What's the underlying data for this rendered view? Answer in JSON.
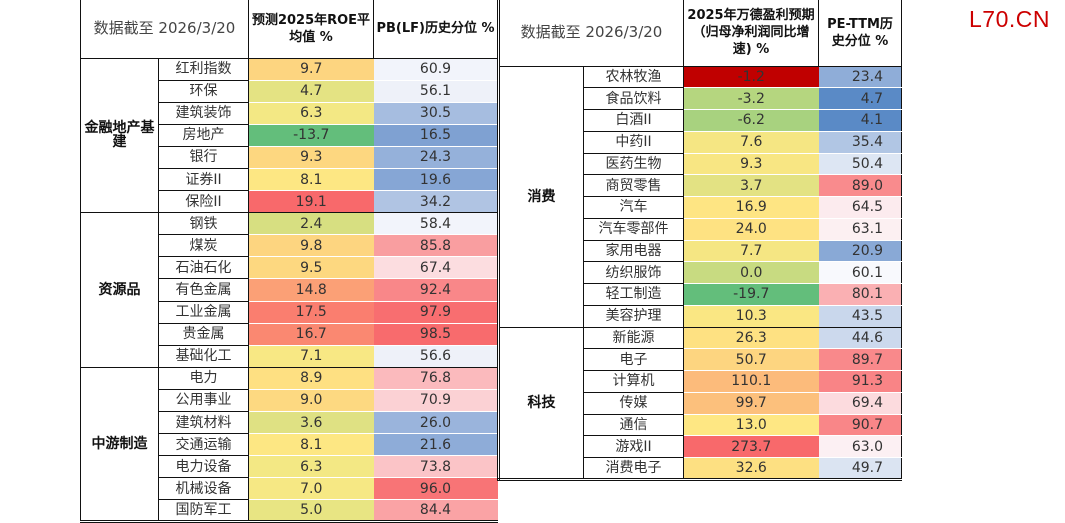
{
  "watermark": "L70.CN",
  "left_table": {
    "header": {
      "date_label": "数据截至 2026/3/20",
      "col1": "预测2025年ROE平均值 %",
      "col2": "PB(LF)历史分位 %"
    },
    "groups": [
      {
        "name": "金融地产基建",
        "rows": [
          {
            "industry": "红利指数",
            "roe": "9.7",
            "pb": "60.9",
            "roe_color": "#fdd580",
            "pb_color": "#f2f4fb"
          },
          {
            "industry": "环保",
            "roe": "4.7",
            "pb": "56.1",
            "roe_color": "#e4e383",
            "pb_color": "#eef1f9"
          },
          {
            "industry": "建筑装饰",
            "roe": "6.3",
            "pb": "30.5",
            "roe_color": "#f3e884",
            "pb_color": "#a6bde0"
          },
          {
            "industry": "房地产",
            "roe": "-13.7",
            "pb": "16.5",
            "roe_color": "#63be7b",
            "pb_color": "#7fa1d2"
          },
          {
            "industry": "银行",
            "roe": "9.3",
            "pb": "24.3",
            "roe_color": "#fdd780",
            "pb_color": "#95b1da"
          },
          {
            "industry": "证券II",
            "roe": "8.1",
            "pb": "19.6",
            "roe_color": "#fde783",
            "pb_color": "#86a6d5"
          },
          {
            "industry": "保险II",
            "roe": "19.1",
            "pb": "34.2",
            "roe_color": "#f8696b",
            "pb_color": "#b0c4e3"
          }
        ]
      },
      {
        "name": "资源品",
        "rows": [
          {
            "industry": "钢铁",
            "roe": "2.4",
            "pb": "58.4",
            "roe_color": "#d7df81",
            "pb_color": "#f2f4fb"
          },
          {
            "industry": "煤炭",
            "roe": "9.8",
            "pb": "85.8",
            "roe_color": "#fdd580",
            "pb_color": "#f99ea0"
          },
          {
            "industry": "石油石化",
            "roe": "9.5",
            "pb": "67.4",
            "roe_color": "#fdd880",
            "pb_color": "#fcdde0"
          },
          {
            "industry": "有色金属",
            "roe": "14.8",
            "pb": "92.4",
            "roe_color": "#fba076",
            "pb_color": "#f98789"
          },
          {
            "industry": "工业金属",
            "roe": "17.5",
            "pb": "97.9",
            "roe_color": "#fa7e6f",
            "pb_color": "#f86e70"
          },
          {
            "industry": "贵金属",
            "roe": "16.7",
            "pb": "98.5",
            "roe_color": "#fa8871",
            "pb_color": "#f86b6d"
          },
          {
            "industry": "基础化工",
            "roe": "7.1",
            "pb": "56.6",
            "roe_color": "#f8e884",
            "pb_color": "#eef1f9"
          }
        ]
      },
      {
        "name": "中游制造",
        "rows": [
          {
            "industry": "电力",
            "roe": "8.9",
            "pb": "76.8",
            "roe_color": "#fee082",
            "pb_color": "#fbbabd"
          },
          {
            "industry": "公用事业",
            "roe": "9.0",
            "pb": "70.9",
            "roe_color": "#fdd981",
            "pb_color": "#fbd1d4"
          },
          {
            "industry": "建筑材料",
            "roe": "3.6",
            "pb": "26.0",
            "roe_color": "#dfe183",
            "pb_color": "#9ab4dc"
          },
          {
            "industry": "交通运输",
            "roe": "8.1",
            "pb": "21.6",
            "roe_color": "#fde783",
            "pb_color": "#8eacd8"
          },
          {
            "industry": "电力设备",
            "roe": "6.3",
            "pb": "73.8",
            "roe_color": "#f3e884",
            "pb_color": "#fbc4c7"
          },
          {
            "industry": "机械设备",
            "roe": "7.0",
            "pb": "96.0",
            "roe_color": "#f6e884",
            "pb_color": "#f87476"
          },
          {
            "industry": "国防军工",
            "roe": "5.0",
            "pb": "84.4",
            "roe_color": "#e8e583",
            "pb_color": "#faa3a5"
          }
        ]
      }
    ]
  },
  "right_table": {
    "header": {
      "date_label": "数据截至 2026/3/20",
      "col1": "2025年万德盈利预期（归母净利润同比增速) %",
      "col2": "PE-TTM历史分位 %"
    },
    "groups": [
      {
        "name": "消费",
        "rows": [
          {
            "industry": "农林牧渔",
            "growth": "-1.2",
            "pe": "23.4",
            "growth_color": "#c00000",
            "pe_color": "#8fadd8"
          },
          {
            "industry": "食品饮料",
            "growth": "-3.2",
            "pe": "4.7",
            "growth_color": "#b5d67f",
            "pe_color": "#5a8ac6"
          },
          {
            "industry": "白酒II",
            "growth": "-6.2",
            "pe": "4.1",
            "growth_color": "#a8d27f",
            "pe_color": "#5a8ac6"
          },
          {
            "industry": "中药II",
            "growth": "7.6",
            "pe": "35.4",
            "growth_color": "#f5e683",
            "pe_color": "#b1c6e4"
          },
          {
            "industry": "医药生物",
            "growth": "9.3",
            "pe": "50.4",
            "growth_color": "#f8e683",
            "pe_color": "#dde6f3"
          },
          {
            "industry": "商贸零售",
            "growth": "3.7",
            "pe": "89.0",
            "growth_color": "#e3e283",
            "pe_color": "#f98b8d"
          },
          {
            "industry": "汽车",
            "growth": "16.9",
            "pe": "64.5",
            "growth_color": "#fee583",
            "pe_color": "#fcebee"
          },
          {
            "industry": "汽车零部件",
            "growth": "24.0",
            "pe": "63.1",
            "growth_color": "#fee282",
            "pe_color": "#fcf0f2"
          },
          {
            "industry": "家用电器",
            "growth": "7.7",
            "pe": "20.9",
            "growth_color": "#f5e683",
            "pe_color": "#89a9d6"
          },
          {
            "industry": "纺织服饰",
            "growth": "0.0",
            "pe": "60.1",
            "growth_color": "#c8db81",
            "pe_color": "#f8f9fd"
          },
          {
            "industry": "轻工制造",
            "growth": "-19.7",
            "pe": "80.1",
            "growth_color": "#63be7b",
            "pe_color": "#fab0b3"
          },
          {
            "industry": "美容护理",
            "growth": "10.3",
            "pe": "43.5",
            "growth_color": "#fae783",
            "pe_color": "#c9d7ec"
          }
        ]
      },
      {
        "name": "科技",
        "rows": [
          {
            "industry": "新能源",
            "growth": "26.3",
            "pe": "44.6",
            "growth_color": "#fee182",
            "pe_color": "#ccd9ed"
          },
          {
            "industry": "电子",
            "growth": "50.7",
            "pe": "89.7",
            "growth_color": "#fdd580",
            "pe_color": "#f9898b"
          },
          {
            "industry": "计算机",
            "growth": "110.1",
            "pe": "91.3",
            "growth_color": "#fcbb7b",
            "pe_color": "#f98486"
          },
          {
            "industry": "传媒",
            "growth": "99.7",
            "pe": "69.4",
            "growth_color": "#fcc07c",
            "pe_color": "#fcdbde"
          },
          {
            "industry": "通信",
            "growth": "13.0",
            "pe": "90.7",
            "growth_color": "#fee783",
            "pe_color": "#f98688"
          },
          {
            "industry": "游戏II",
            "growth": "273.7",
            "pe": "63.0",
            "growth_color": "#f8696b",
            "pe_color": "#fcf0f3"
          },
          {
            "industry": "消费电子",
            "growth": "32.6",
            "pe": "49.7",
            "growth_color": "#fde082",
            "pe_color": "#dbe4f2"
          }
        ]
      }
    ]
  }
}
